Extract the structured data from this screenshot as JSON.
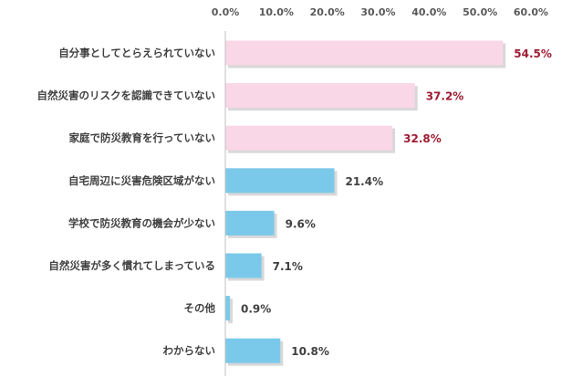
{
  "chart_data": {
    "type": "bar",
    "orientation": "horizontal",
    "title": "",
    "xlabel": "",
    "ylabel": "",
    "xlim": [
      0,
      60
    ],
    "x_ticks": [
      "0.0%",
      "10.0%",
      "20.0%",
      "30.0%",
      "40.0%",
      "50.0%",
      "60.0%"
    ],
    "x_tick_values": [
      0,
      10,
      20,
      30,
      40,
      50,
      60
    ],
    "x_axis_position": "top",
    "grid": false,
    "legend": "none",
    "categories": [
      "自分事としてとらえられていない",
      "自然災害のリスクを認識できていない",
      "家庭で防災教育を行っていない",
      "自宅周辺に災害危険区域がない",
      "学校で防災教育の機会が少ない",
      "自然災害が多く慣れてしまっている",
      "その他",
      "わからない"
    ],
    "values": [
      54.5,
      37.2,
      32.8,
      21.4,
      9.6,
      7.1,
      0.9,
      10.8
    ],
    "value_labels": [
      "54.5%",
      "37.2%",
      "32.8%",
      "21.4%",
      "9.6%",
      "7.1%",
      "0.9%",
      "10.8%"
    ],
    "bar_colors": [
      "#fad7e6",
      "#fad7e6",
      "#fad7e6",
      "#7ac9ea",
      "#7ac9ea",
      "#7ac9ea",
      "#7ac9ea",
      "#7ac9ea"
    ],
    "label_colors": [
      "#9e1b32",
      "#9e1b32",
      "#9e1b32",
      "#404040",
      "#404040",
      "#404040",
      "#404040",
      "#404040"
    ],
    "axis_color": "#bfbfbf"
  }
}
